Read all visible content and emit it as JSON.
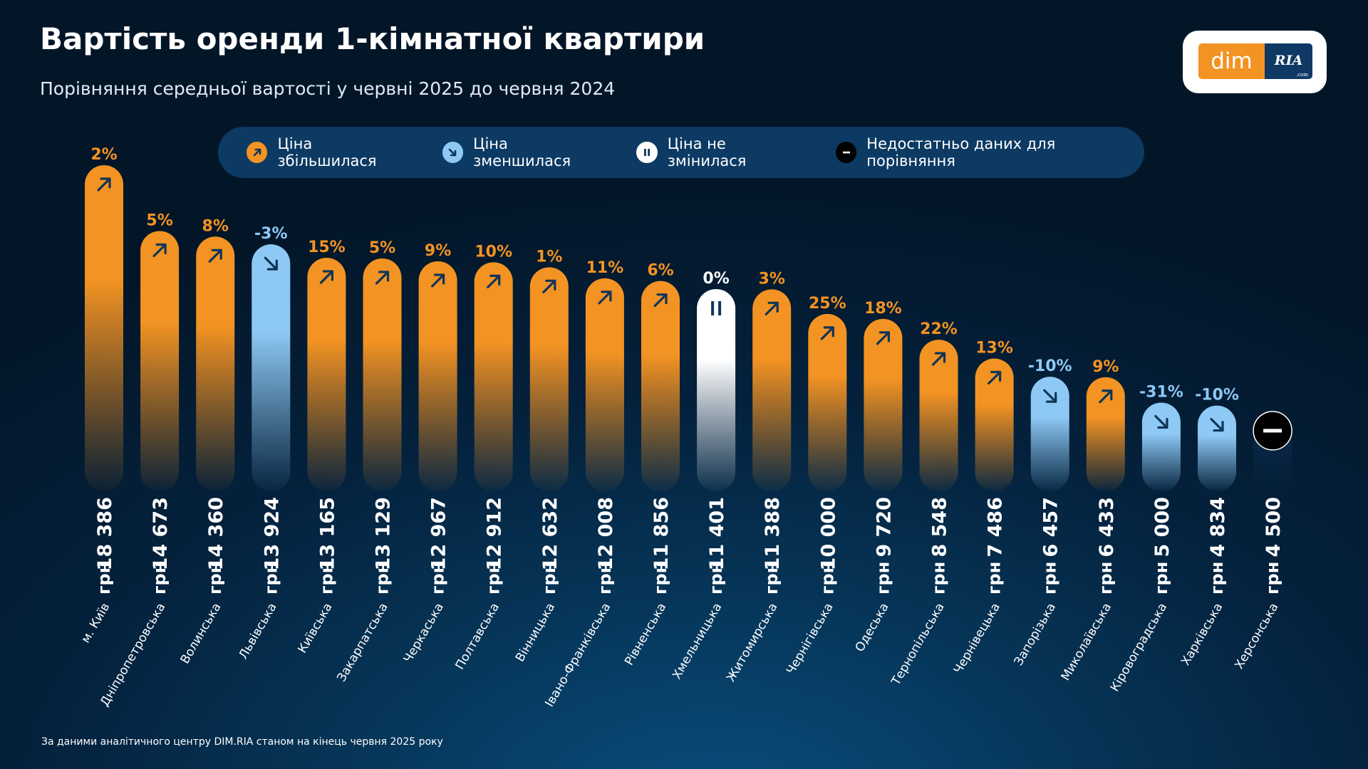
{
  "header": {
    "title": "Вартість оренди 1-кімнатної квартири",
    "subtitle": "Порівняння середньої вартості у червні 2025 до червня 2024"
  },
  "logo": {
    "left": "dim",
    "right": "RIA",
    "suffix": ".com"
  },
  "legend": [
    {
      "label": "Ціна збільшилася",
      "icon": "arrow-up-right-icon",
      "color": "#f39323"
    },
    {
      "label": "Ціна зменшилася",
      "icon": "arrow-down-right-icon",
      "color": "#8ec9f5"
    },
    {
      "label": "Ціна не змінилася",
      "icon": "pause-icon",
      "color": "#ffffff"
    },
    {
      "label": "Недостатньо даних для порівняння",
      "icon": "minus-icon",
      "color": "#000000"
    }
  ],
  "footnote": "За даними аналітичного центру DIM.RIA станом на кінець червня 2025 року",
  "colors": {
    "increase": "#f39323",
    "decrease": "#8ec9f5",
    "same": "#ffffff",
    "nodata": "#000000",
    "arrow": "#0f3557"
  },
  "chart_data": {
    "type": "bar",
    "unit": "грн",
    "categories": [
      "м. Київ",
      "Дніпропетровська",
      "Волинська",
      "Львівська",
      "Київська",
      "Закарпатська",
      "Черкаська",
      "Полтавська",
      "Вінницька",
      "Івано-Франківська",
      "Рівненська",
      "Хмельницька",
      "Житомирська",
      "Чернігівська",
      "Одеська",
      "Тернопільська",
      "Чернівецька",
      "Запорізька",
      "Миколаївська",
      "Кіровоградська",
      "Харківська",
      "Херсонська"
    ],
    "values": [
      18386,
      14673,
      14360,
      13924,
      13165,
      13129,
      12967,
      12912,
      12632,
      12008,
      11856,
      11401,
      11388,
      10000,
      9720,
      8548,
      7486,
      6457,
      6433,
      5000,
      4834,
      4500
    ],
    "value_labels": [
      "18 386",
      "14 673",
      "14 360",
      "13 924",
      "13 165",
      "13 129",
      "12 967",
      "12 912",
      "12 632",
      "12 008",
      "11 856",
      "11 401",
      "11 388",
      "10 000",
      "9 720",
      "8 548",
      "7 486",
      "6 457",
      "6 433",
      "5 000",
      "4 834",
      "4 500"
    ],
    "change_labels": [
      "2%",
      "5%",
      "8%",
      "-3%",
      "15%",
      "5%",
      "9%",
      "10%",
      "1%",
      "11%",
      "6%",
      "0%",
      "3%",
      "25%",
      "18%",
      "22%",
      "13%",
      "-10%",
      "9%",
      "-31%",
      "-10%",
      ""
    ],
    "status": [
      "up",
      "up",
      "up",
      "down",
      "up",
      "up",
      "up",
      "up",
      "up",
      "up",
      "up",
      "same",
      "up",
      "up",
      "up",
      "up",
      "up",
      "down",
      "up",
      "down",
      "down",
      "nodata"
    ],
    "ylim": [
      0,
      18386
    ]
  }
}
